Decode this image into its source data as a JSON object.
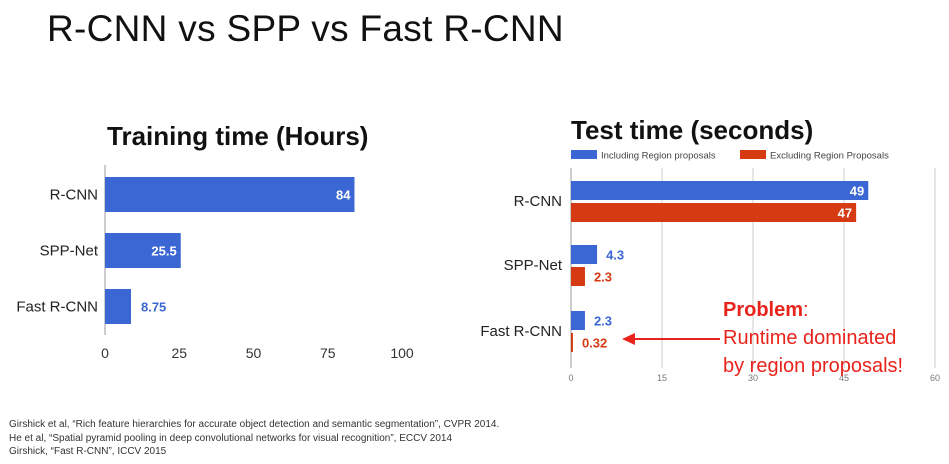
{
  "slide": {
    "title": "R-CNN vs SPP vs Fast R-CNN"
  },
  "colors": {
    "blue": "#3b67d4",
    "red": "#d53a12",
    "grid": "#cccccc",
    "callout": "#e8231c"
  },
  "chart_data": [
    {
      "type": "bar",
      "orientation": "horizontal",
      "title": "Training time (Hours)",
      "categories": [
        "R-CNN",
        "SPP-Net",
        "Fast R-CNN"
      ],
      "series": [
        {
          "name": "Training time",
          "values": [
            84,
            25.5,
            8.75
          ],
          "labels": [
            "84",
            "25.5",
            "8.75"
          ]
        }
      ],
      "xlim": [
        0,
        100
      ],
      "xticks": [
        0,
        25,
        50,
        75,
        100
      ],
      "grid": false,
      "legend": "none"
    },
    {
      "type": "bar",
      "orientation": "horizontal",
      "title": "Test time (seconds)",
      "categories": [
        "R-CNN",
        "SPP-Net",
        "Fast R-CNN"
      ],
      "series": [
        {
          "name": "Including Region proposals",
          "values": [
            49,
            4.3,
            2.3
          ],
          "labels": [
            "49",
            "4.3",
            "2.3"
          ]
        },
        {
          "name": "Excluding Region Proposals",
          "values": [
            47,
            2.3,
            0.32
          ],
          "labels": [
            "47",
            "2.3",
            "0.32"
          ]
        }
      ],
      "xlim": [
        0,
        60
      ],
      "xticks": [
        0,
        15,
        30,
        45,
        60
      ],
      "grid": true,
      "legend": "top"
    }
  ],
  "callout": {
    "emphasis": "Problem",
    "colon": ":",
    "line2": "Runtime dominated",
    "line3": "by region proposals!"
  },
  "citations": [
    "Girshick et al, “Rich feature hierarchies for accurate object detection and semantic segmentation”, CVPR 2014.",
    "He et al, “Spatial pyramid pooling in deep convolutional networks for visual recognition”, ECCV 2014",
    "Girshick, “Fast R-CNN”, ICCV 2015"
  ]
}
